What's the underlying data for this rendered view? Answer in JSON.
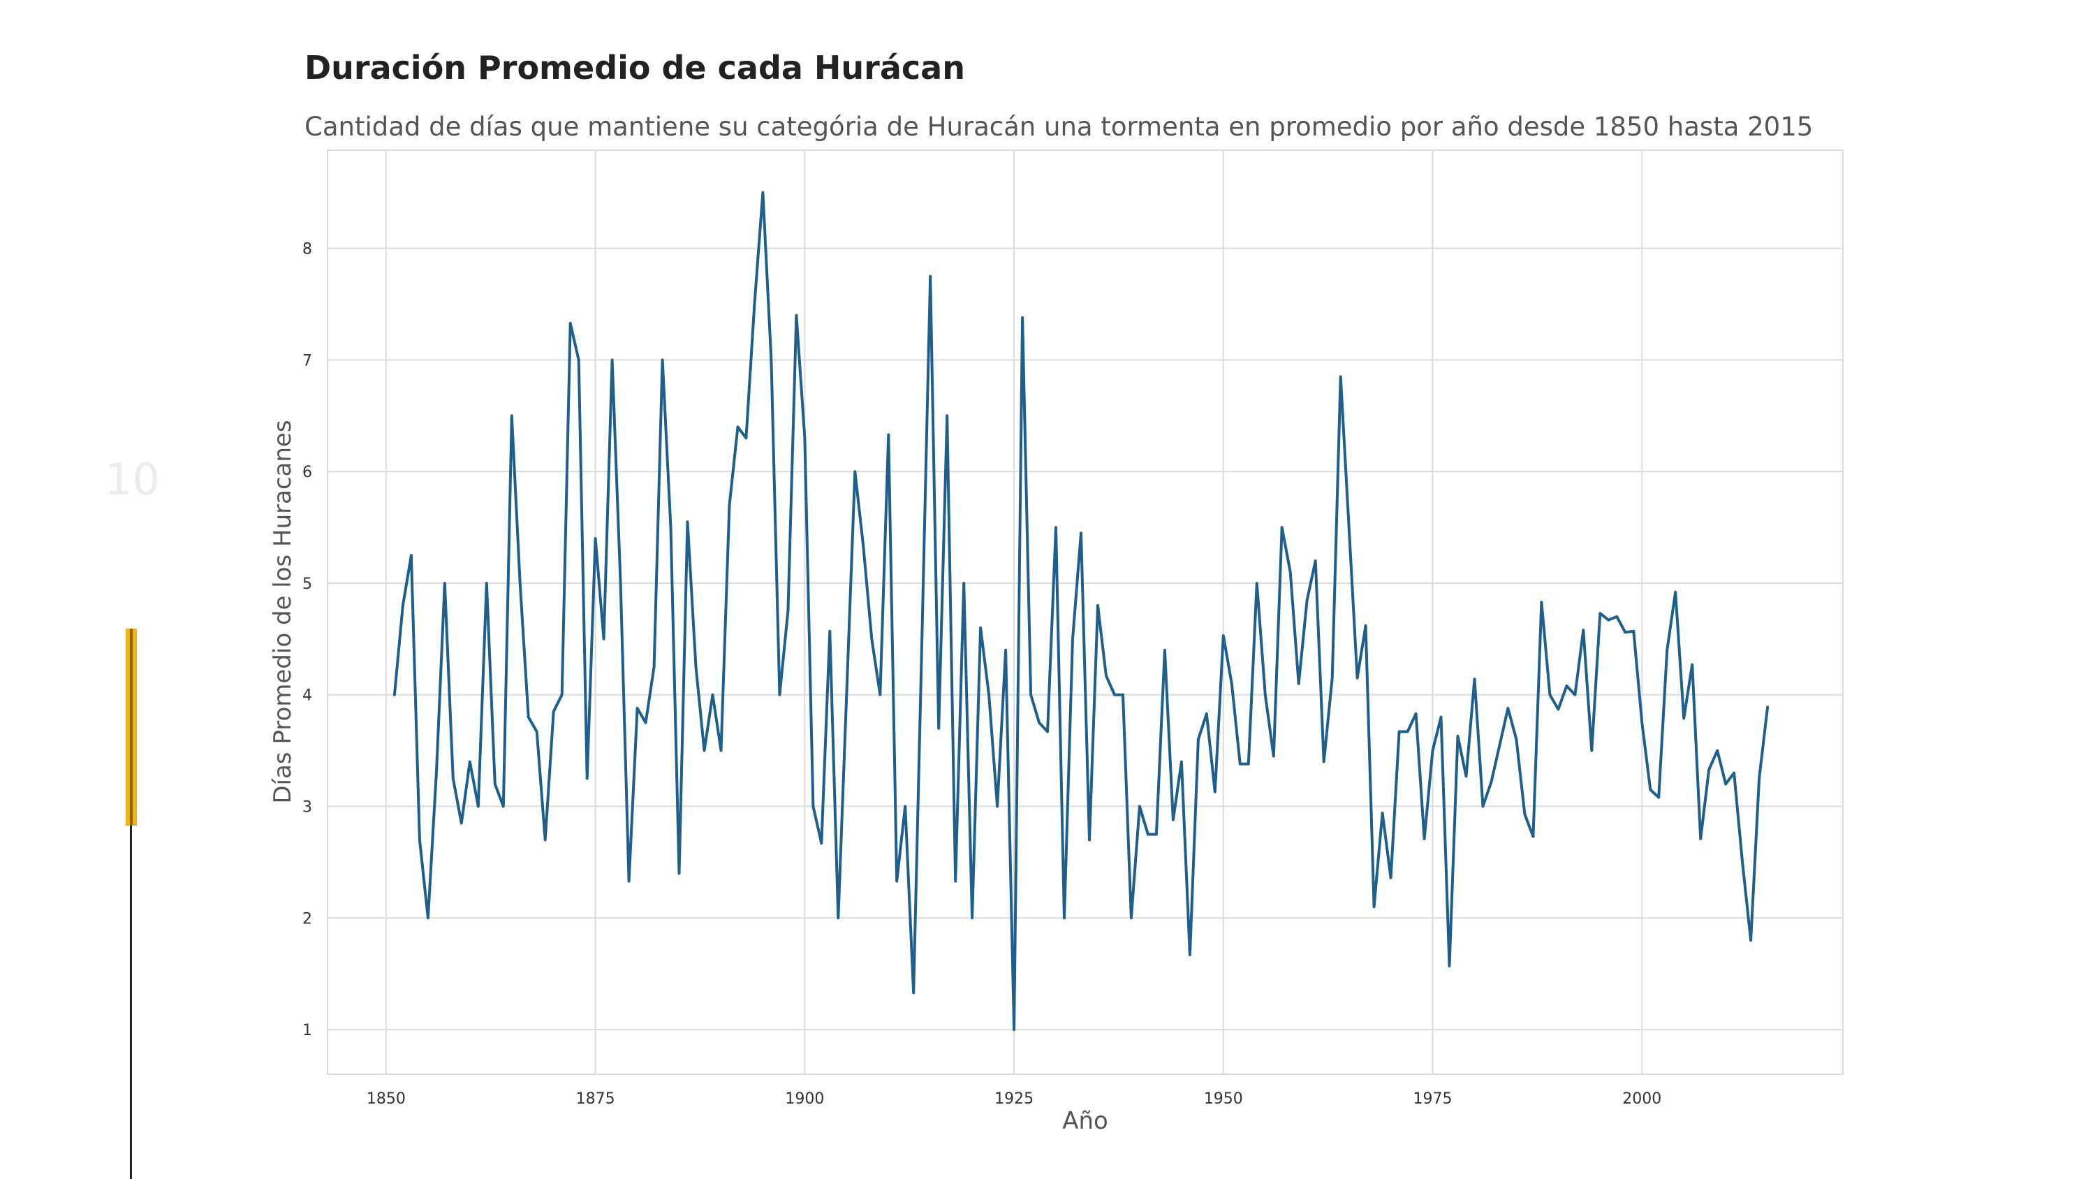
{
  "slide": {
    "number": "10"
  },
  "chart_data": {
    "type": "line",
    "title": "Duración Promedio de cada Hurácan",
    "subtitle": "Cantidad de días que mantiene su categória de Huracán una tormenta en promedio por año desde 1850 hasta 2015",
    "xlabel": "Año",
    "ylabel": "Días Promedio de los Huracanes",
    "xlim": [
      1843,
      2024
    ],
    "ylim": [
      0.6,
      8.88
    ],
    "x_ticks": [
      1850,
      1875,
      1900,
      1925,
      1950,
      1975,
      2000
    ],
    "y_ticks": [
      1,
      2,
      3,
      4,
      5,
      6,
      7,
      8
    ],
    "grid": true,
    "line_color": "#1f5f8b",
    "series": [
      {
        "x": [
          1851,
          1852,
          1853,
          1854,
          1855,
          1856,
          1857,
          1858,
          1859,
          1860,
          1861,
          1862,
          1863,
          1864,
          1865,
          1866,
          1867,
          1868,
          1869,
          1870,
          1871,
          1872,
          1873,
          1874,
          1875,
          1876,
          1877,
          1878,
          1879,
          1880,
          1881,
          1882,
          1883,
          1884,
          1885,
          1886,
          1887,
          1888,
          1889,
          1890,
          1891,
          1892,
          1893,
          1894,
          1895,
          1896,
          1897,
          1898,
          1899,
          1900,
          1901,
          1902,
          1903,
          1904,
          1905,
          1906,
          1907,
          1908,
          1909,
          1910,
          1911,
          1912,
          1913,
          1914,
          1915,
          1916,
          1917,
          1918,
          1919,
          1920,
          1921,
          1922,
          1923,
          1924,
          1925,
          1926,
          1927,
          1928,
          1929,
          1930,
          1931,
          1932,
          1933,
          1934,
          1935,
          1936,
          1937,
          1938,
          1939,
          1940,
          1941,
          1942,
          1943,
          1944,
          1945,
          1946,
          1947,
          1948,
          1949,
          1950,
          1951,
          1952,
          1953,
          1954,
          1955,
          1956,
          1957,
          1958,
          1959,
          1960,
          1961,
          1962,
          1963,
          1964,
          1965,
          1966,
          1967,
          1968,
          1969,
          1970,
          1971,
          1972,
          1973,
          1974,
          1975,
          1976,
          1977,
          1978,
          1979,
          1980,
          1981,
          1982,
          1983,
          1984,
          1985,
          1986,
          1987,
          1988,
          1989,
          1990,
          1991,
          1992,
          1993,
          1994,
          1995,
          1996,
          1997,
          1998,
          1999,
          2000,
          2001,
          2002,
          2003,
          2004,
          2005,
          2006,
          2007,
          2008,
          2009,
          2010,
          2011,
          2012,
          2013,
          2014,
          2015
        ],
        "values": [
          4.0,
          4.8,
          5.25,
          2.7,
          2.0,
          3.3,
          5.0,
          3.25,
          2.85,
          3.4,
          3.0,
          5.0,
          3.2,
          3.0,
          6.5,
          5.0,
          3.8,
          3.67,
          2.7,
          3.85,
          4.0,
          7.33,
          7.0,
          3.25,
          5.4,
          4.5,
          7.0,
          5.0,
          2.33,
          3.88,
          3.75,
          4.25,
          7.0,
          5.5,
          2.4,
          5.55,
          4.25,
          3.5,
          4.0,
          3.5,
          5.7,
          6.4,
          6.3,
          7.5,
          8.5,
          7.0,
          4.0,
          4.75,
          7.4,
          6.3,
          3.0,
          2.67,
          4.57,
          2.0,
          4.0,
          6.0,
          5.33,
          4.5,
          4.0,
          6.33,
          2.33,
          3.0,
          1.33,
          4.5,
          7.75,
          3.7,
          6.5,
          2.33,
          5.0,
          2.0,
          4.6,
          4.0,
          3.0,
          4.4,
          1.0,
          7.38,
          4.0,
          3.75,
          3.67,
          5.5,
          2.0,
          4.5,
          5.45,
          2.7,
          4.8,
          4.17,
          4.0,
          4.0,
          2.0,
          3.0,
          2.75,
          2.75,
          4.4,
          2.88,
          3.4,
          1.67,
          3.6,
          3.83,
          3.13,
          4.53,
          4.1,
          3.38,
          3.38,
          5.0,
          4.0,
          3.45,
          5.5,
          5.1,
          4.1,
          4.85,
          5.2,
          3.4,
          4.15,
          6.85,
          5.5,
          4.15,
          4.62,
          2.1,
          2.94,
          2.36,
          3.67,
          3.67,
          3.83,
          2.71,
          3.5,
          3.8,
          1.57,
          3.63,
          3.27,
          4.14,
          3.0,
          3.22,
          3.55,
          3.88,
          3.6,
          2.93,
          2.73,
          4.83,
          4.0,
          3.87,
          4.08,
          4.0,
          4.58,
          3.5,
          4.73,
          4.67,
          4.7,
          4.56,
          4.57,
          3.75,
          3.15,
          3.08,
          4.4,
          4.92,
          3.79,
          4.27,
          2.71,
          3.33,
          3.5,
          3.2,
          3.3,
          2.5,
          1.8,
          3.25,
          3.89
        ]
      }
    ]
  }
}
